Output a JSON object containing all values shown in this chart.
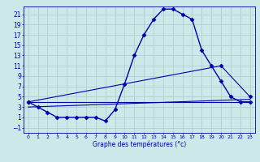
{
  "bg_color": "#cce8e8",
  "grid_color": "#aacccc",
  "line_color": "#0000aa",
  "xlabel": "Graphe des températures (°c)",
  "xlim": [
    -0.5,
    23.5
  ],
  "ylim": [
    -2,
    22.5
  ],
  "yticks": [
    -1,
    1,
    3,
    5,
    7,
    9,
    11,
    13,
    15,
    17,
    19,
    21
  ],
  "xticks": [
    0,
    1,
    2,
    3,
    4,
    5,
    6,
    7,
    8,
    9,
    10,
    11,
    12,
    13,
    14,
    15,
    16,
    17,
    18,
    19,
    20,
    21,
    22,
    23
  ],
  "series": [
    {
      "x": [
        0,
        1,
        2,
        3,
        4,
        5,
        6,
        7,
        8,
        9,
        10,
        11,
        12,
        13,
        14,
        15,
        16,
        17,
        18,
        19,
        20,
        21,
        22,
        23
      ],
      "y": [
        4,
        3,
        2,
        1,
        1,
        1,
        1,
        1,
        0.3,
        2.5,
        7.5,
        13,
        17,
        20,
        22,
        22,
        21,
        20,
        14,
        11,
        8,
        5,
        4,
        4
      ],
      "marker": "D",
      "ms": 2.5,
      "lw": 1.0
    },
    {
      "x": [
        0,
        23
      ],
      "y": [
        4,
        4
      ],
      "marker": null,
      "ms": 0,
      "lw": 0.8
    },
    {
      "x": [
        0,
        23
      ],
      "y": [
        3,
        4.5
      ],
      "marker": null,
      "ms": 0,
      "lw": 0.8
    },
    {
      "x": [
        0,
        20,
        23
      ],
      "y": [
        4,
        11,
        5
      ],
      "marker": "D",
      "ms": 2.5,
      "lw": 0.8
    }
  ],
  "figsize": [
    3.2,
    2.0
  ],
  "dpi": 100
}
